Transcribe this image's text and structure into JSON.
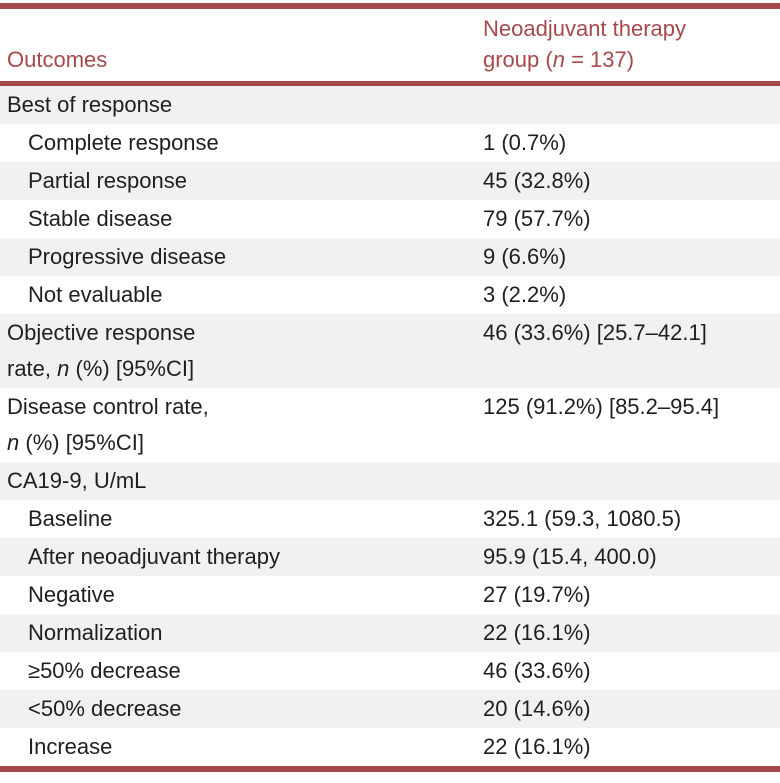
{
  "theme": {
    "accent": "#a6494c",
    "row_alt_bg": "#f1f1f1",
    "text": "#1f1f1f",
    "page_bg": "#ffffff"
  },
  "table": {
    "header": {
      "col1": "Outcomes",
      "col2_runs": [
        {
          "t": "Neoadjuvant therapy\ngroup ("
        },
        {
          "t": "n",
          "i": true
        },
        {
          "t": " = 137)"
        }
      ]
    },
    "rows": [
      {
        "label_runs": [
          {
            "t": "Best of response"
          }
        ],
        "value": "",
        "indent": false
      },
      {
        "label_runs": [
          {
            "t": "Complete response"
          }
        ],
        "value": "1 (0.7%)",
        "indent": true
      },
      {
        "label_runs": [
          {
            "t": "Partial response"
          }
        ],
        "value": "45 (32.8%)",
        "indent": true
      },
      {
        "label_runs": [
          {
            "t": "Stable disease"
          }
        ],
        "value": "79 (57.7%)",
        "indent": true
      },
      {
        "label_runs": [
          {
            "t": "Progressive disease"
          }
        ],
        "value": "9 (6.6%)",
        "indent": true
      },
      {
        "label_runs": [
          {
            "t": "Not evaluable"
          }
        ],
        "value": "3 (2.2%)",
        "indent": true
      },
      {
        "label_runs": [
          {
            "t": "Objective response\nrate, "
          },
          {
            "t": "n",
            "i": true
          },
          {
            "t": " (%) [95%CI]"
          }
        ],
        "value": "46 (33.6%) [25.7–42.1]",
        "indent": false
      },
      {
        "label_runs": [
          {
            "t": "Disease control rate,\n"
          },
          {
            "t": "n",
            "i": true
          },
          {
            "t": " (%) [95%CI]"
          }
        ],
        "value": "125 (91.2%) [85.2–95.4]",
        "indent": false
      },
      {
        "label_runs": [
          {
            "t": "CA19-9, U/mL"
          }
        ],
        "value": "",
        "indent": false
      },
      {
        "label_runs": [
          {
            "t": "Baseline"
          }
        ],
        "value": "325.1 (59.3, 1080.5)",
        "indent": true
      },
      {
        "label_runs": [
          {
            "t": "After neoadjuvant therapy"
          }
        ],
        "value": "95.9 (15.4, 400.0)",
        "indent": true
      },
      {
        "label_runs": [
          {
            "t": "Negative"
          }
        ],
        "value": "27 (19.7%)",
        "indent": true
      },
      {
        "label_runs": [
          {
            "t": "Normalization"
          }
        ],
        "value": "22 (16.1%)",
        "indent": true
      },
      {
        "label_runs": [
          {
            "t": "≥50% decrease"
          }
        ],
        "value": "46 (33.6%)",
        "indent": true
      },
      {
        "label_runs": [
          {
            "t": "<50% decrease"
          }
        ],
        "value": "20 (14.6%)",
        "indent": true
      },
      {
        "label_runs": [
          {
            "t": "Increase"
          }
        ],
        "value": "22 (16.1%)",
        "indent": true
      }
    ]
  }
}
